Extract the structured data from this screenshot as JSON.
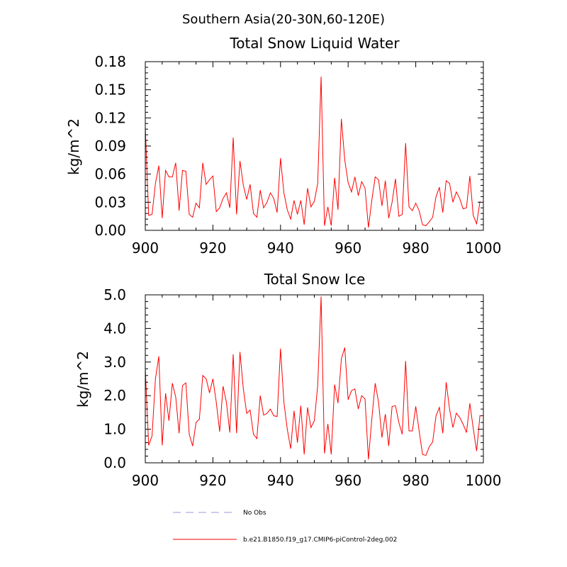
{
  "figure": {
    "suptitle": "Southern Asia(20-30N,60-120E)",
    "legend": [
      {
        "label": "No Obs",
        "color": "#9999dd",
        "style": "dashed"
      },
      {
        "label": "b.e21.B1850.f19_g17.CMIP6-piControl-2deg.002",
        "color": "#ff0000",
        "style": "solid"
      }
    ]
  },
  "chart_data": [
    {
      "type": "line",
      "title": "Total Snow Liquid Water",
      "xlabel": "",
      "ylabel": "kg/m^2",
      "xlim": [
        900,
        1000
      ],
      "ylim": [
        0,
        0.18
      ],
      "xticks": [
        900,
        920,
        940,
        960,
        980,
        1000
      ],
      "xtick_labels": [
        "900",
        "920",
        "940",
        "960",
        "980",
        "1000"
      ],
      "yticks": [
        0,
        0.03,
        0.06,
        0.09,
        0.12,
        0.15,
        0.18
      ],
      "ytick_labels": [
        "0.00",
        "0.03",
        "0.06",
        "0.09",
        "0.12",
        "0.15",
        "0.18"
      ],
      "series": [
        {
          "name": "b.e21.B1850.f19_g17.CMIP6-piControl-2deg.002",
          "color": "#ff0000",
          "x_start": 900,
          "x_step": 1,
          "values": [
            0.11,
            0.016,
            0.017,
            0.05,
            0.069,
            0.013,
            0.064,
            0.057,
            0.057,
            0.072,
            0.021,
            0.064,
            0.063,
            0.017,
            0.014,
            0.029,
            0.024,
            0.072,
            0.049,
            0.054,
            0.058,
            0.02,
            0.024,
            0.034,
            0.04,
            0.024,
            0.099,
            0.017,
            0.074,
            0.048,
            0.033,
            0.049,
            0.018,
            0.014,
            0.043,
            0.024,
            0.03,
            0.04,
            0.034,
            0.019,
            0.077,
            0.04,
            0.022,
            0.012,
            0.032,
            0.017,
            0.032,
            0.006,
            0.045,
            0.025,
            0.031,
            0.05,
            0.164,
            0.005,
            0.025,
            0.005,
            0.056,
            0.022,
            0.119,
            0.075,
            0.051,
            0.041,
            0.057,
            0.037,
            0.052,
            0.045,
            0.003,
            0.032,
            0.057,
            0.054,
            0.026,
            0.053,
            0.013,
            0.03,
            0.055,
            0.015,
            0.017,
            0.093,
            0.025,
            0.021,
            0.029,
            0.021,
            0.006,
            0.005,
            0.009,
            0.014,
            0.036,
            0.046,
            0.019,
            0.053,
            0.05,
            0.03,
            0.041,
            0.034,
            0.023,
            0.024,
            0.058,
            0.016,
            0.007,
            0.031
          ]
        }
      ]
    },
    {
      "type": "line",
      "title": "Total Snow Ice",
      "xlabel": "",
      "ylabel": "kg/m^2",
      "xlim": [
        900,
        1000
      ],
      "ylim": [
        0,
        5
      ],
      "xticks": [
        900,
        920,
        940,
        960,
        980,
        1000
      ],
      "xtick_labels": [
        "900",
        "920",
        "940",
        "960",
        "980",
        "1000"
      ],
      "yticks": [
        0,
        1,
        2,
        3,
        4,
        5
      ],
      "ytick_labels": [
        "0.0",
        "1.0",
        "2.0",
        "3.0",
        "4.0",
        "5.0"
      ],
      "series": [
        {
          "name": "b.e21.B1850.f19_g17.CMIP6-piControl-2deg.002",
          "color": "#ff0000",
          "x_start": 900,
          "x_step": 1,
          "values": [
            2.8,
            0.52,
            0.8,
            2.5,
            3.17,
            0.52,
            2.07,
            1.25,
            2.37,
            1.96,
            0.88,
            2.3,
            2.38,
            0.85,
            0.5,
            1.2,
            1.3,
            2.6,
            2.5,
            2.08,
            2.5,
            1.8,
            0.93,
            2.28,
            1.8,
            0.9,
            3.23,
            0.88,
            3.3,
            2.2,
            1.47,
            1.57,
            0.85,
            0.72,
            2.0,
            1.42,
            1.47,
            1.6,
            1.4,
            1.38,
            3.4,
            1.8,
            1.0,
            0.42,
            1.55,
            0.6,
            1.7,
            0.25,
            1.65,
            1.05,
            1.25,
            2.3,
            4.95,
            0.28,
            1.16,
            0.25,
            2.33,
            1.78,
            3.1,
            3.43,
            1.88,
            2.15,
            2.2,
            1.6,
            2.0,
            1.9,
            0.1,
            1.3,
            2.37,
            1.8,
            0.75,
            1.45,
            0.5,
            1.68,
            1.7,
            1.2,
            0.85,
            3.03,
            0.95,
            0.95,
            1.68,
            0.95,
            0.25,
            0.22,
            0.48,
            0.62,
            1.4,
            1.65,
            0.88,
            2.4,
            1.6,
            1.05,
            1.48,
            1.35,
            1.15,
            0.9,
            1.77,
            1.03,
            0.35,
            1.42
          ]
        }
      ]
    }
  ]
}
